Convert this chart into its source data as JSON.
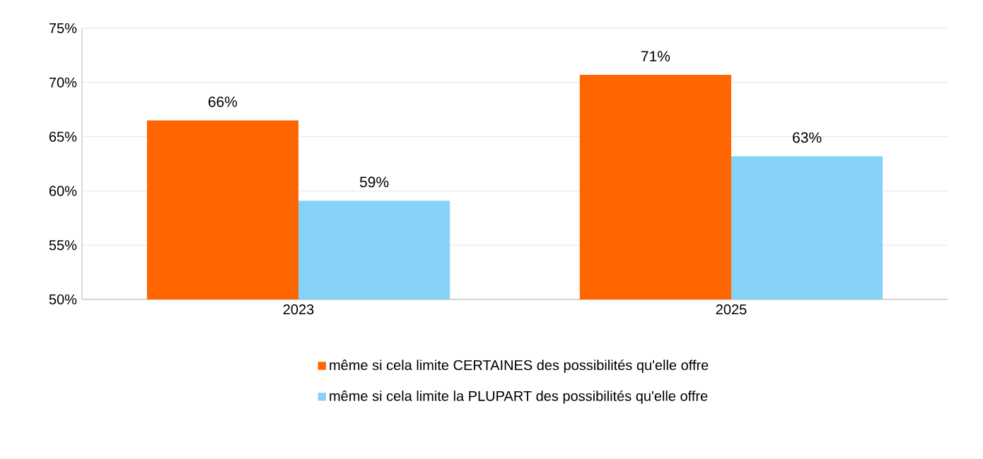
{
  "chart_data": {
    "type": "bar",
    "categories": [
      "2023",
      "2025"
    ],
    "series": [
      {
        "name": "même si cela limite CERTAINES des possibilités qu'elle offre",
        "color": "#ff6600",
        "values": [
          66.5,
          70.7
        ],
        "value_labels": [
          "66%",
          "71%"
        ]
      },
      {
        "name": "même si cela limite la PLUPART des possibilités qu'elle offre",
        "color": "#87d3f8",
        "values": [
          59.1,
          63.2
        ],
        "value_labels": [
          "59%",
          "63%"
        ]
      }
    ],
    "ylim": [
      50,
      75
    ],
    "yticks": [
      {
        "value": 50,
        "label": "50%"
      },
      {
        "value": 55,
        "label": "55%"
      },
      {
        "value": 60,
        "label": "60%"
      },
      {
        "value": 65,
        "label": "65%"
      },
      {
        "value": 70,
        "label": "70%"
      },
      {
        "value": 75,
        "label": "75%"
      }
    ],
    "grid": "y",
    "legend": "bottom"
  }
}
